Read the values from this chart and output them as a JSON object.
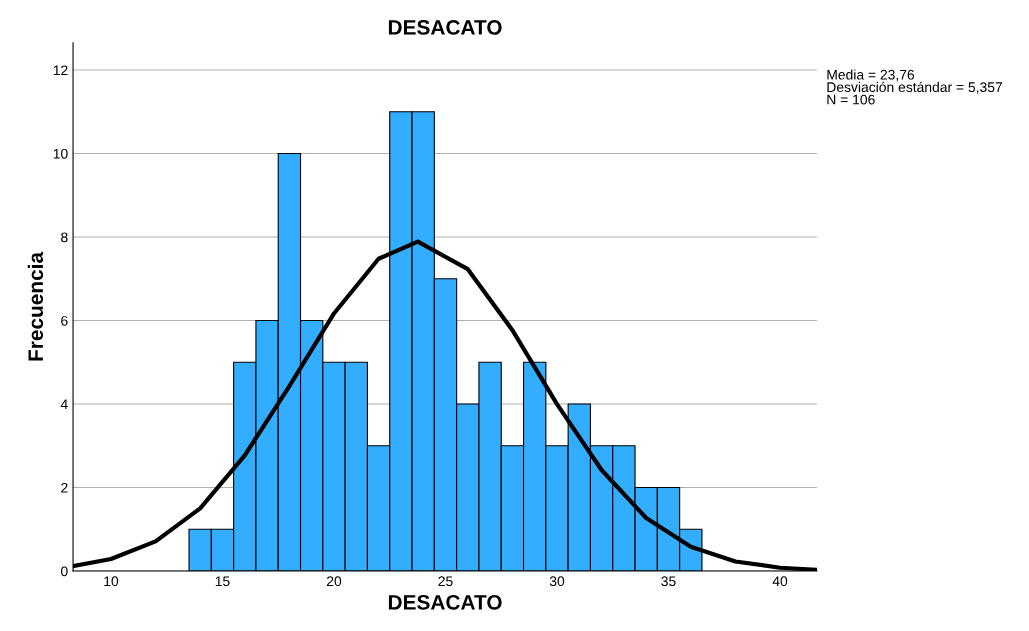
{
  "chart_data": {
    "type": "histogram",
    "title": "DESACATO",
    "xlabel": "DESACATO",
    "ylabel": "Frecuencia",
    "bins": [
      13.5,
      14.5,
      15.5,
      16.5,
      17.5,
      18.5,
      19.5,
      20.5,
      21.5,
      22.5,
      23.5,
      24.5,
      25.5,
      26.5,
      27.5,
      28.5,
      29.5,
      30.5,
      31.5,
      32.5,
      33.5,
      34.5,
      35.5,
      36.5
    ],
    "values": [
      1,
      1,
      5,
      6,
      10,
      6,
      5,
      5,
      3,
      11,
      11,
      7,
      4,
      5,
      3,
      5,
      3,
      4,
      3,
      3,
      2,
      2,
      1
    ],
    "color": "#33adff",
    "series": [
      {
        "type": "line",
        "color": "#000000",
        "x": [
          8.3,
          10,
          12,
          14,
          16,
          18,
          20,
          22,
          23.76,
          26,
          28,
          30,
          32,
          34,
          36,
          38,
          40,
          41.66
        ],
        "values": [
          0.12,
          0.29,
          0.71,
          1.5,
          2.77,
          4.43,
          6.17,
          7.48,
          7.89,
          7.23,
          5.77,
          4.0,
          2.42,
          1.27,
          0.58,
          0.23,
          0.08,
          0.03
        ]
      }
    ],
    "xlim": [
      8.3,
      41.66
    ],
    "xticks": [
      10,
      15,
      20,
      25,
      30,
      35,
      40
    ],
    "ylim": [
      0,
      12.65
    ],
    "yticks": [
      0,
      2,
      4,
      6,
      8,
      10,
      12
    ],
    "grid": "y",
    "legend": false,
    "annotations": [
      "Media = 23,76\nDesviación estándar = 5,357\nN = 106"
    ]
  }
}
